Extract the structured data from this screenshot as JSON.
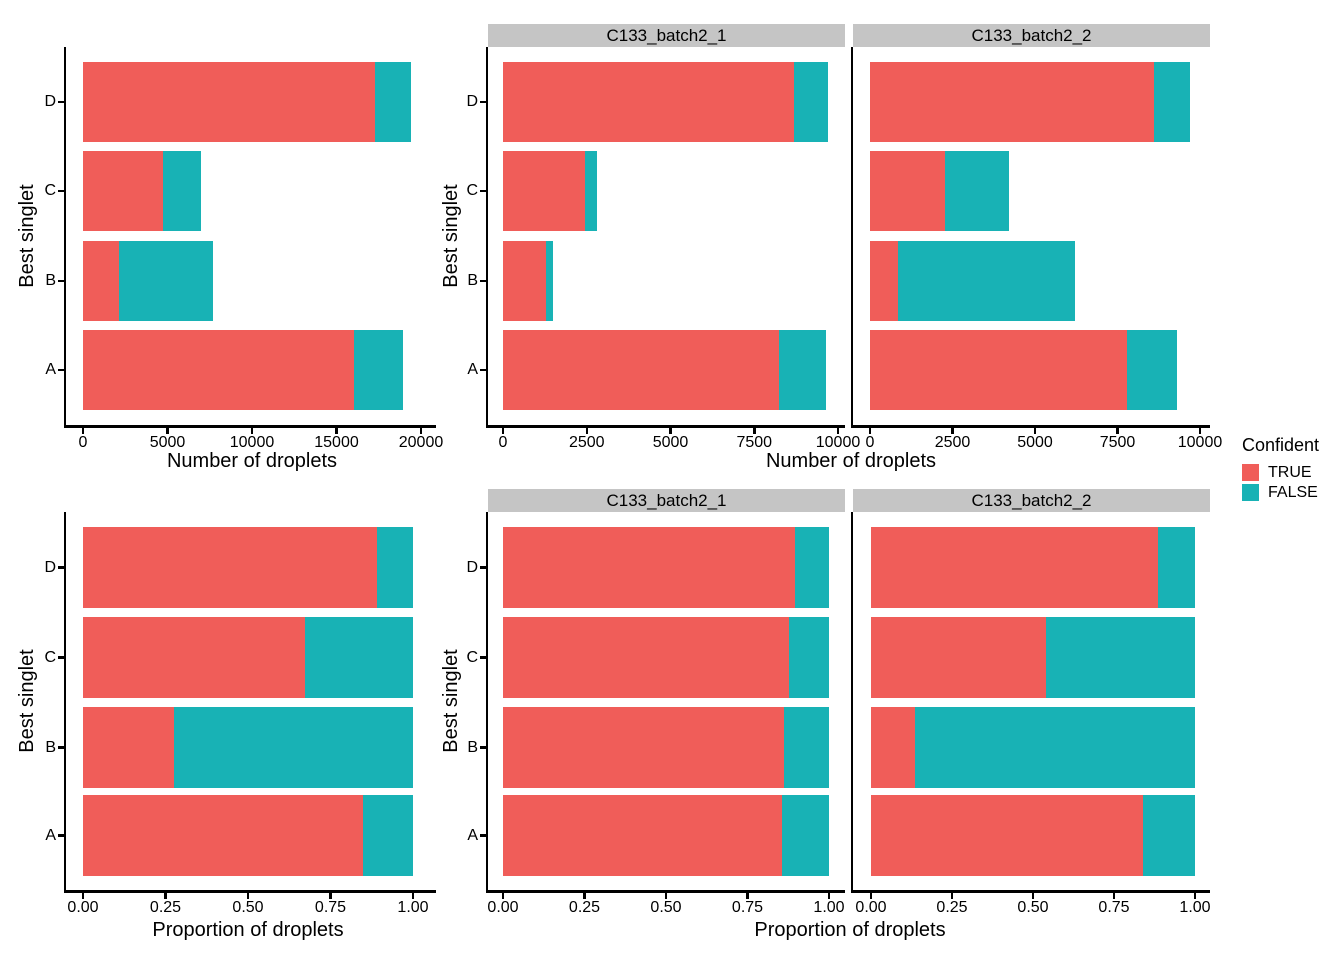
{
  "figure": {
    "background": "#FFFFFF",
    "legend": {
      "title": "Confident",
      "position": "right",
      "items": [
        {
          "label": "TRUE",
          "color": "#F05D59"
        },
        {
          "label": "FALSE",
          "color": "#18B2B5"
        }
      ]
    },
    "strip_bg": "#C5C5C5",
    "axis_color": "#000000"
  },
  "chart_data": [
    {
      "id": "counts_all",
      "type": "bar",
      "orientation": "horizontal",
      "stacked": true,
      "grid": false,
      "categories": [
        "D",
        "C",
        "B",
        "A"
      ],
      "xlabel": "Number of droplets",
      "ylabel": "Best singlet",
      "xlim": [
        0,
        20000
      ],
      "xticks": [
        0,
        5000,
        10000,
        15000,
        20000
      ],
      "xtick_labels": [
        "0",
        "5000",
        "10000",
        "15000",
        "20000"
      ],
      "panels": [
        {
          "facet": null,
          "series": [
            {
              "name": "TRUE",
              "color": "#F05D59",
              "values": [
                17300,
                4720,
                2130,
                16050
              ]
            },
            {
              "name": "FALSE",
              "color": "#18B2B5",
              "values": [
                2100,
                2280,
                5570,
                2900
              ]
            }
          ]
        }
      ]
    },
    {
      "id": "counts_by_sample",
      "type": "bar",
      "orientation": "horizontal",
      "stacked": true,
      "grid": false,
      "categories": [
        "D",
        "C",
        "B",
        "A"
      ],
      "xlabel": "Number of droplets",
      "ylabel": "Best singlet",
      "xlim": [
        0,
        10000
      ],
      "xticks": [
        0,
        2500,
        5000,
        7500,
        10000
      ],
      "xtick_labels": [
        "0",
        "2500",
        "5000",
        "7500",
        "10000"
      ],
      "panels": [
        {
          "facet": "C133_batch2_1",
          "series": [
            {
              "name": "TRUE",
              "color": "#F05D59",
              "values": [
                8700,
                2460,
                1280,
                8250
              ]
            },
            {
              "name": "FALSE",
              "color": "#18B2B5",
              "values": [
                1000,
                340,
                200,
                1400
              ]
            }
          ]
        },
        {
          "facet": "C133_batch2_2",
          "series": [
            {
              "name": "TRUE",
              "color": "#F05D59",
              "values": [
                8600,
                2270,
                850,
                7800
              ]
            },
            {
              "name": "FALSE",
              "color": "#18B2B5",
              "values": [
                1100,
                1930,
                5350,
                1500
              ]
            }
          ]
        }
      ]
    },
    {
      "id": "prop_all",
      "type": "bar",
      "orientation": "horizontal",
      "stacked": true,
      "grid": false,
      "categories": [
        "D",
        "C",
        "B",
        "A"
      ],
      "xlabel": "Proportion of droplets",
      "ylabel": "Best singlet",
      "xlim": [
        0,
        1
      ],
      "xticks": [
        0,
        0.25,
        0.5,
        0.75,
        1
      ],
      "xtick_labels": [
        "0.00",
        "0.25",
        "0.50",
        "0.75",
        "1.00"
      ],
      "panels": [
        {
          "facet": null,
          "series": [
            {
              "name": "TRUE",
              "color": "#F05D59",
              "values": [
                0.892,
                0.674,
                0.277,
                0.847
              ]
            },
            {
              "name": "FALSE",
              "color": "#18B2B5",
              "values": [
                0.108,
                0.326,
                0.723,
                0.153
              ]
            }
          ]
        }
      ]
    },
    {
      "id": "prop_by_sample",
      "type": "bar",
      "orientation": "horizontal",
      "stacked": true,
      "grid": false,
      "categories": [
        "D",
        "C",
        "B",
        "A"
      ],
      "xlabel": "Proportion of droplets",
      "ylabel": "Best singlet",
      "xlim": [
        0,
        1
      ],
      "xticks": [
        0,
        0.25,
        0.5,
        0.75,
        1
      ],
      "xtick_labels": [
        "0.00",
        "0.25",
        "0.50",
        "0.75",
        "1.00"
      ],
      "panels": [
        {
          "facet": "C133_batch2_1",
          "series": [
            {
              "name": "TRUE",
              "color": "#F05D59",
              "values": [
                0.897,
                0.878,
                0.862,
                0.855
              ]
            },
            {
              "name": "FALSE",
              "color": "#18B2B5",
              "values": [
                0.103,
                0.122,
                0.138,
                0.145
              ]
            }
          ]
        },
        {
          "facet": "C133_batch2_2",
          "series": [
            {
              "name": "TRUE",
              "color": "#F05D59",
              "values": [
                0.886,
                0.54,
                0.137,
                0.839
              ]
            },
            {
              "name": "FALSE",
              "color": "#18B2B5",
              "values": [
                0.114,
                0.46,
                0.863,
                0.161
              ]
            }
          ]
        }
      ]
    }
  ]
}
